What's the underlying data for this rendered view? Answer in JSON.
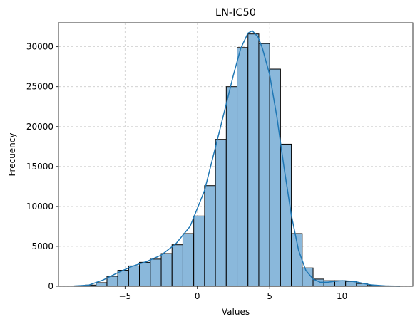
{
  "chart_data": {
    "type": "bar",
    "title": "LN-IC50",
    "xlabel": "Values",
    "ylabel": "Frecuency",
    "xlim": [
      -9.6,
      14.9
    ],
    "ylim": [
      0,
      33000
    ],
    "xticks": [
      -5,
      0,
      5,
      10
    ],
    "xtick_labels": [
      "−5",
      "0",
      "5",
      "10"
    ],
    "yticks": [
      0,
      5000,
      10000,
      15000,
      20000,
      25000,
      30000
    ],
    "ytick_labels": [
      "0",
      "5000",
      "10000",
      "15000",
      "20000",
      "25000",
      "30000"
    ],
    "grid": true,
    "legend": "none",
    "bar_color": "#8ab8db",
    "line_color": "#1f77b4",
    "bins": [
      {
        "left": -8.5,
        "right": -7.75,
        "count": 50
      },
      {
        "left": -7.75,
        "right": -7.0,
        "count": 150
      },
      {
        "left": -7.0,
        "right": -6.25,
        "count": 450
      },
      {
        "left": -6.25,
        "right": -5.5,
        "count": 1250
      },
      {
        "left": -5.5,
        "right": -4.75,
        "count": 2000
      },
      {
        "left": -4.75,
        "right": -4.0,
        "count": 2550
      },
      {
        "left": -4.0,
        "right": -3.25,
        "count": 3000
      },
      {
        "left": -3.25,
        "right": -2.5,
        "count": 3400
      },
      {
        "left": -2.5,
        "right": -1.75,
        "count": 4100
      },
      {
        "left": -1.75,
        "right": -1.0,
        "count": 5200
      },
      {
        "left": -1.0,
        "right": -0.25,
        "count": 6600
      },
      {
        "left": -0.25,
        "right": 0.5,
        "count": 8800
      },
      {
        "left": 0.5,
        "right": 1.25,
        "count": 12600
      },
      {
        "left": 1.25,
        "right": 2.0,
        "count": 18400
      },
      {
        "left": 2.0,
        "right": 2.75,
        "count": 25000
      },
      {
        "left": 2.75,
        "right": 3.5,
        "count": 29900
      },
      {
        "left": 3.5,
        "right": 4.25,
        "count": 31600
      },
      {
        "left": 4.25,
        "right": 5.0,
        "count": 30400
      },
      {
        "left": 5.0,
        "right": 5.75,
        "count": 27200
      },
      {
        "left": 5.75,
        "right": 6.5,
        "count": 17800
      },
      {
        "left": 6.5,
        "right": 7.25,
        "count": 6600
      },
      {
        "left": 7.25,
        "right": 8.0,
        "count": 2300
      },
      {
        "left": 8.0,
        "right": 8.75,
        "count": 900
      },
      {
        "left": 8.75,
        "right": 9.5,
        "count": 700
      },
      {
        "left": 9.5,
        "right": 10.25,
        "count": 700
      },
      {
        "left": 10.25,
        "right": 11.0,
        "count": 600
      },
      {
        "left": 11.0,
        "right": 11.75,
        "count": 350
      },
      {
        "left": 11.75,
        "right": 12.5,
        "count": 100
      },
      {
        "left": 12.5,
        "right": 13.25,
        "count": 50
      },
      {
        "left": 13.25,
        "right": 14.0,
        "count": 20
      }
    ],
    "kde": {
      "x": [
        -8.5,
        -7.5,
        -6.5,
        -5.5,
        -4.5,
        -3.5,
        -2.5,
        -1.5,
        -0.5,
        0.5,
        1.5,
        2.5,
        3.0,
        3.5,
        3.8,
        4.2,
        4.5,
        5.0,
        5.5,
        6.0,
        6.5,
        7.0,
        7.5,
        8.0,
        8.5,
        9.0,
        9.5,
        10.0,
        10.5,
        11.0,
        11.5,
        12.0,
        13.0,
        14.0
      ],
      "y": [
        30,
        150,
        800,
        1700,
        2500,
        3100,
        3900,
        5300,
        7500,
        12000,
        19200,
        26500,
        29800,
        31700,
        32000,
        31200,
        29800,
        26500,
        21200,
        14800,
        8900,
        4500,
        2000,
        900,
        500,
        500,
        620,
        700,
        650,
        550,
        350,
        180,
        50,
        10
      ]
    }
  }
}
